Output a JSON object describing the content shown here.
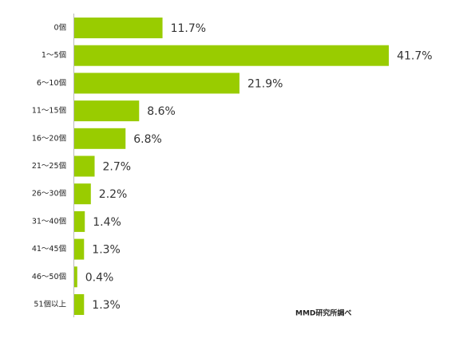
{
  "chart_data": {
    "type": "bar",
    "orientation": "horizontal",
    "categories": [
      "0個",
      "1～5個",
      "6～10個",
      "11～15個",
      "16～20個",
      "21～25個",
      "26～30個",
      "31～40個",
      "41～45個",
      "46～50個",
      "51個以上"
    ],
    "values": [
      11.7,
      41.7,
      21.9,
      8.6,
      6.8,
      2.7,
      2.2,
      1.4,
      1.3,
      0.4,
      1.3
    ],
    "value_labels": [
      "11.7%",
      "41.7%",
      "21.9%",
      "8.6%",
      "6.8%",
      "2.7%",
      "2.2%",
      "1.4%",
      "1.3%",
      "0.4%",
      "1.3%"
    ],
    "color": "#99cc00",
    "annotation": "MMD研究所調べ"
  }
}
